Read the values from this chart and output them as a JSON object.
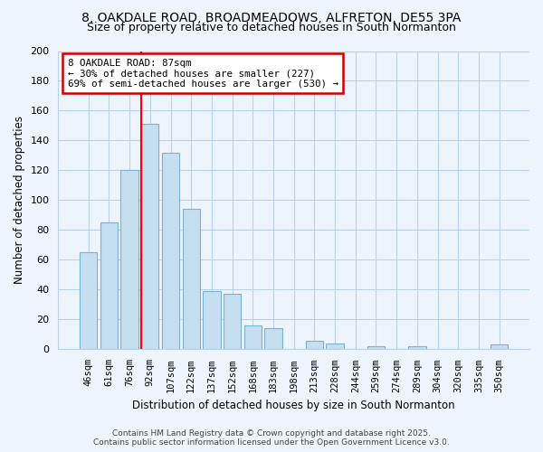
{
  "title_line1": "8, OAKDALE ROAD, BROADMEADOWS, ALFRETON, DE55 3PA",
  "title_line2": "Size of property relative to detached houses in South Normanton",
  "xlabel": "Distribution of detached houses by size in South Normanton",
  "ylabel": "Number of detached properties",
  "bar_labels": [
    "46sqm",
    "61sqm",
    "76sqm",
    "92sqm",
    "107sqm",
    "122sqm",
    "137sqm",
    "152sqm",
    "168sqm",
    "183sqm",
    "198sqm",
    "213sqm",
    "228sqm",
    "244sqm",
    "259sqm",
    "274sqm",
    "289sqm",
    "304sqm",
    "320sqm",
    "335sqm",
    "350sqm"
  ],
  "bar_values": [
    65,
    85,
    120,
    151,
    132,
    94,
    39,
    37,
    16,
    14,
    0,
    6,
    4,
    0,
    2,
    0,
    2,
    0,
    0,
    0,
    3
  ],
  "bar_color": "#c5dff0",
  "bar_edge_color": "#7ab0d0",
  "vline_x_index": 3,
  "vline_color": "red",
  "annotation_title": "8 OAKDALE ROAD: 87sqm",
  "annotation_line1": "← 30% of detached houses are smaller (227)",
  "annotation_line2": "69% of semi-detached houses are larger (530) →",
  "annotation_box_color": "white",
  "annotation_box_edge": "#cc0000",
  "ylim": [
    0,
    200
  ],
  "yticks": [
    0,
    20,
    40,
    60,
    80,
    100,
    120,
    140,
    160,
    180,
    200
  ],
  "footer_line1": "Contains HM Land Registry data © Crown copyright and database right 2025.",
  "footer_line2": "Contains public sector information licensed under the Open Government Licence v3.0.",
  "background_color": "#eef4fb",
  "grid_color": "#b8d0e8"
}
